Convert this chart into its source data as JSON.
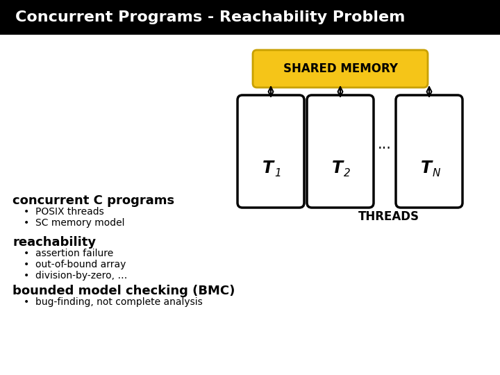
{
  "title": "Concurrent Programs - Reachability Problem",
  "title_bg": "#000000",
  "title_fg": "#ffffff",
  "shared_memory_label": "SHARED MEMORY",
  "shared_memory_bg": "#f5c518",
  "shared_memory_border": "#c8a000",
  "thread_labels": [
    "T",
    "T",
    "T"
  ],
  "thread_subscripts": [
    "1",
    "2",
    "N"
  ],
  "threads_label": "THREADS",
  "dots_label": "...",
  "section1_header": "concurrent C programs",
  "section1_bullets": [
    "POSIX threads",
    "SC memory model"
  ],
  "section2_header": "reachability",
  "section2_bullets": [
    "assertion failure",
    "out-of-bound array",
    "division-by-zero, …"
  ],
  "section3_header": "bounded model checking (BMC)",
  "section3_bullets": [
    "bug-finding, not complete analysis"
  ],
  "bg_color": "#ffffff",
  "box_color": "#000000",
  "arrow_color": "#000000"
}
